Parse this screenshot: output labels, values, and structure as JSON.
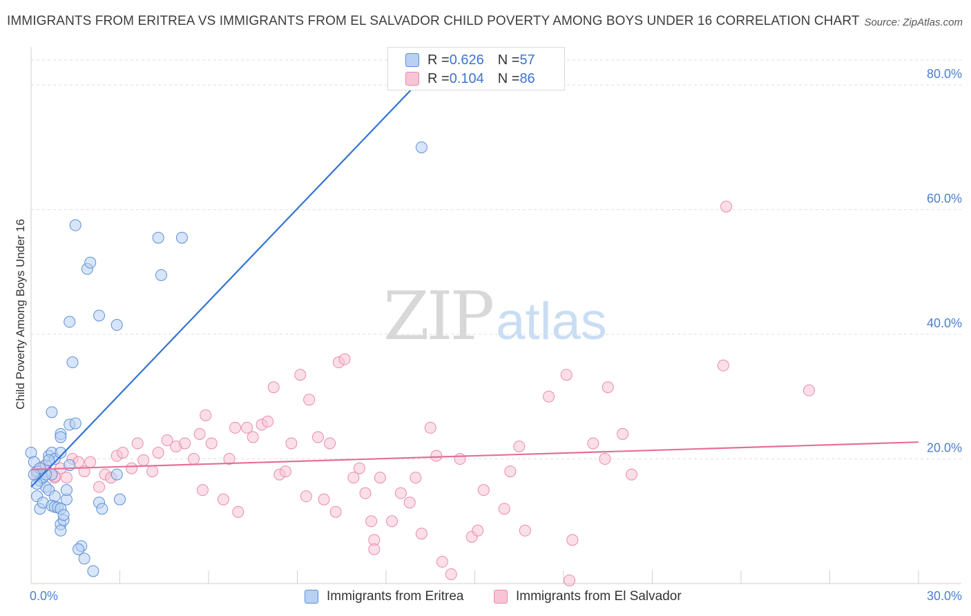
{
  "title": "IMMIGRANTS FROM ERITREA VS IMMIGRANTS FROM EL SALVADOR CHILD POVERTY AMONG BOYS UNDER 16 CORRELATION CHART",
  "source": "Source: ZipAtlas.com",
  "watermark": {
    "zip": "ZIP",
    "atlas": "atlas"
  },
  "legend": {
    "rows": [
      {
        "r_label": "R = ",
        "r_value": "0.626",
        "n_label": "N = ",
        "n_value": "57"
      },
      {
        "r_label": "R = ",
        "r_value": "0.104",
        "n_label": "N = ",
        "n_value": "86"
      }
    ]
  },
  "chart_data": {
    "type": "scatter",
    "title": "IMMIGRANTS FROM ERITREA VS IMMIGRANTS FROM EL SALVADOR CHILD POVERTY AMONG BOYS UNDER 16 CORRELATION CHART",
    "xlabel": "",
    "ylabel": "Child Poverty Among Boys Under 16",
    "xlim": [
      0,
      30
    ],
    "ylim": [
      0,
      85
    ],
    "x_tick_labels": [
      "0.0%",
      "30.0%"
    ],
    "y_ticks": [
      20,
      40,
      60,
      80
    ],
    "y_tick_labels": [
      "20.0%",
      "40.0%",
      "60.0%",
      "80.0%"
    ],
    "grid": true,
    "legend_position": "top-center",
    "series": [
      {
        "name": "Immigrants from Eritrea",
        "color": "#5a8fd8",
        "fill": "#b8d0f2",
        "trend": {
          "x": [
            0.0,
            13.0
          ],
          "y": [
            15.5,
            80.0
          ],
          "color": "#2f72d6"
        },
        "points": [
          [
            0.0,
            21.0
          ],
          [
            0.1,
            19.5
          ],
          [
            0.2,
            18.0
          ],
          [
            0.3,
            16.5
          ],
          [
            0.2,
            14.0
          ],
          [
            0.3,
            12.0
          ],
          [
            0.4,
            13.0
          ],
          [
            0.5,
            15.5
          ],
          [
            0.4,
            17.0
          ],
          [
            0.5,
            19.0
          ],
          [
            0.6,
            20.5
          ],
          [
            0.7,
            21.0
          ],
          [
            0.8,
            20.0
          ],
          [
            0.7,
            17.5
          ],
          [
            0.6,
            15.0
          ],
          [
            0.8,
            14.0
          ],
          [
            0.7,
            12.5
          ],
          [
            0.8,
            12.3
          ],
          [
            0.9,
            12.2
          ],
          [
            1.0,
            12.0
          ],
          [
            1.0,
            9.5
          ],
          [
            1.1,
            10.2
          ],
          [
            1.1,
            11.0
          ],
          [
            1.2,
            13.5
          ],
          [
            1.2,
            15.0
          ],
          [
            1.3,
            19.0
          ],
          [
            1.0,
            21.0
          ],
          [
            1.0,
            24.0
          ],
          [
            1.0,
            23.5
          ],
          [
            0.7,
            27.5
          ],
          [
            1.3,
            25.5
          ],
          [
            1.5,
            25.7
          ],
          [
            1.4,
            35.5
          ],
          [
            1.3,
            42.0
          ],
          [
            1.5,
            57.5
          ],
          [
            1.9,
            50.5
          ],
          [
            2.0,
            51.5
          ],
          [
            2.3,
            43.0
          ],
          [
            2.9,
            41.5
          ],
          [
            4.3,
            55.5
          ],
          [
            4.4,
            49.5
          ],
          [
            5.1,
            55.5
          ],
          [
            2.9,
            17.5
          ],
          [
            3.0,
            13.5
          ],
          [
            2.3,
            13.0
          ],
          [
            2.4,
            12.0
          ],
          [
            1.7,
            6.0
          ],
          [
            1.8,
            4.0
          ],
          [
            2.1,
            2.0
          ],
          [
            1.6,
            5.5
          ],
          [
            1.0,
            8.5
          ],
          [
            0.5,
            17.5
          ],
          [
            0.3,
            18.5
          ],
          [
            0.2,
            16.0
          ],
          [
            0.1,
            17.5
          ],
          [
            13.2,
            70.0
          ],
          [
            0.6,
            19.8
          ]
        ]
      },
      {
        "name": "Immigrants from El Salvador",
        "color": "#e98aa9",
        "fill": "#f7c5d5",
        "trend": {
          "x": [
            0.0,
            30.0
          ],
          "y": [
            18.3,
            22.7
          ],
          "color": "#e56f98"
        },
        "points": [
          [
            0.2,
            17.5
          ],
          [
            0.5,
            18.0
          ],
          [
            0.8,
            17.0
          ],
          [
            1.0,
            18.5
          ],
          [
            1.2,
            17.0
          ],
          [
            1.4,
            20.0
          ],
          [
            1.6,
            19.5
          ],
          [
            1.8,
            18.0
          ],
          [
            2.0,
            19.5
          ],
          [
            2.3,
            15.5
          ],
          [
            2.5,
            17.5
          ],
          [
            2.7,
            17.0
          ],
          [
            2.9,
            20.5
          ],
          [
            3.1,
            21.0
          ],
          [
            3.4,
            18.5
          ],
          [
            3.8,
            19.8
          ],
          [
            3.6,
            22.5
          ],
          [
            4.1,
            18.0
          ],
          [
            4.3,
            21.0
          ],
          [
            4.6,
            23.0
          ],
          [
            4.9,
            22.0
          ],
          [
            5.2,
            22.5
          ],
          [
            5.5,
            20.0
          ],
          [
            5.7,
            24.0
          ],
          [
            5.8,
            15.0
          ],
          [
            5.9,
            27.0
          ],
          [
            6.1,
            22.5
          ],
          [
            6.5,
            13.5
          ],
          [
            6.7,
            20.0
          ],
          [
            6.9,
            25.0
          ],
          [
            7.0,
            11.5
          ],
          [
            7.3,
            25.0
          ],
          [
            7.5,
            23.5
          ],
          [
            7.8,
            25.5
          ],
          [
            8.0,
            26.0
          ],
          [
            8.2,
            31.5
          ],
          [
            8.4,
            17.5
          ],
          [
            8.6,
            18.0
          ],
          [
            8.8,
            22.5
          ],
          [
            9.1,
            33.5
          ],
          [
            9.3,
            14.0
          ],
          [
            9.4,
            29.5
          ],
          [
            9.7,
            23.5
          ],
          [
            9.9,
            13.5
          ],
          [
            10.1,
            22.5
          ],
          [
            10.3,
            11.5
          ],
          [
            10.4,
            35.5
          ],
          [
            10.6,
            36.0
          ],
          [
            10.9,
            17.0
          ],
          [
            11.1,
            18.5
          ],
          [
            11.3,
            14.5
          ],
          [
            11.5,
            10.0
          ],
          [
            11.6,
            7.0
          ],
          [
            11.8,
            17.0
          ],
          [
            11.6,
            5.5
          ],
          [
            12.2,
            10.0
          ],
          [
            12.5,
            14.5
          ],
          [
            12.8,
            13.0
          ],
          [
            13.0,
            17.0
          ],
          [
            13.2,
            8.0
          ],
          [
            13.5,
            25.0
          ],
          [
            13.7,
            20.5
          ],
          [
            13.9,
            3.5
          ],
          [
            14.2,
            1.5
          ],
          [
            14.5,
            20.0
          ],
          [
            14.9,
            7.5
          ],
          [
            15.1,
            8.5
          ],
          [
            15.3,
            15.0
          ],
          [
            16.0,
            12.0
          ],
          [
            16.2,
            18.0
          ],
          [
            16.5,
            22.0
          ],
          [
            16.7,
            8.5
          ],
          [
            17.5,
            30.0
          ],
          [
            18.1,
            33.5
          ],
          [
            18.3,
            7.0
          ],
          [
            18.2,
            0.5
          ],
          [
            19.0,
            22.5
          ],
          [
            19.4,
            20.0
          ],
          [
            19.5,
            31.5
          ],
          [
            20.0,
            24.0
          ],
          [
            20.3,
            17.5
          ],
          [
            23.5,
            60.5
          ],
          [
            23.4,
            35.0
          ],
          [
            26.3,
            31.0
          ],
          [
            0.8,
            17.2
          ],
          [
            0.4,
            18.8
          ]
        ]
      }
    ]
  }
}
